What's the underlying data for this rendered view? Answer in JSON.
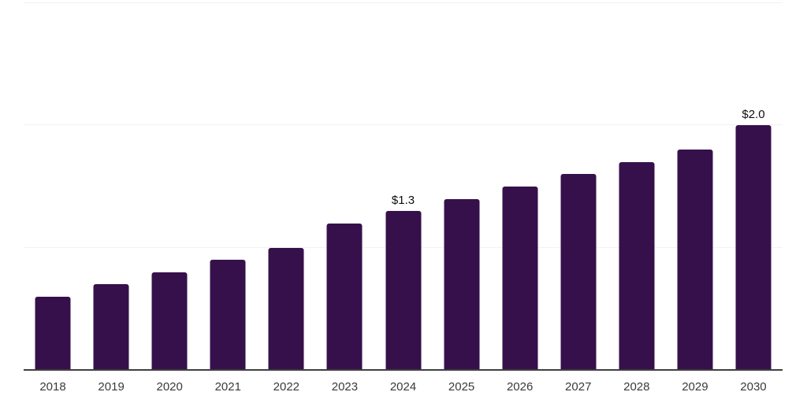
{
  "chart_data": {
    "type": "bar",
    "title": "",
    "xlabel": "",
    "ylabel": "",
    "categories": [
      "2018",
      "2019",
      "2020",
      "2021",
      "2022",
      "2023",
      "2024",
      "2025",
      "2026",
      "2027",
      "2028",
      "2029",
      "2030"
    ],
    "values": [
      0.6,
      0.7,
      0.8,
      0.9,
      1.0,
      1.2,
      1.3,
      1.4,
      1.5,
      1.6,
      1.7,
      1.8,
      2.0
    ],
    "bar_labels": {
      "2024": "$1.3",
      "2030": "$2.0"
    },
    "ylim": [
      0,
      3
    ],
    "gridline_values": [
      1,
      2,
      3
    ],
    "grid": "horizontal-only",
    "legend": "none",
    "colors": {
      "bar": "#36104b",
      "gridline": "#f2f2f2",
      "axis_line": "#3f3f3f",
      "tick_label": "#3a3a3a",
      "data_label": "#0d0d0d",
      "background": "#ffffff"
    }
  }
}
